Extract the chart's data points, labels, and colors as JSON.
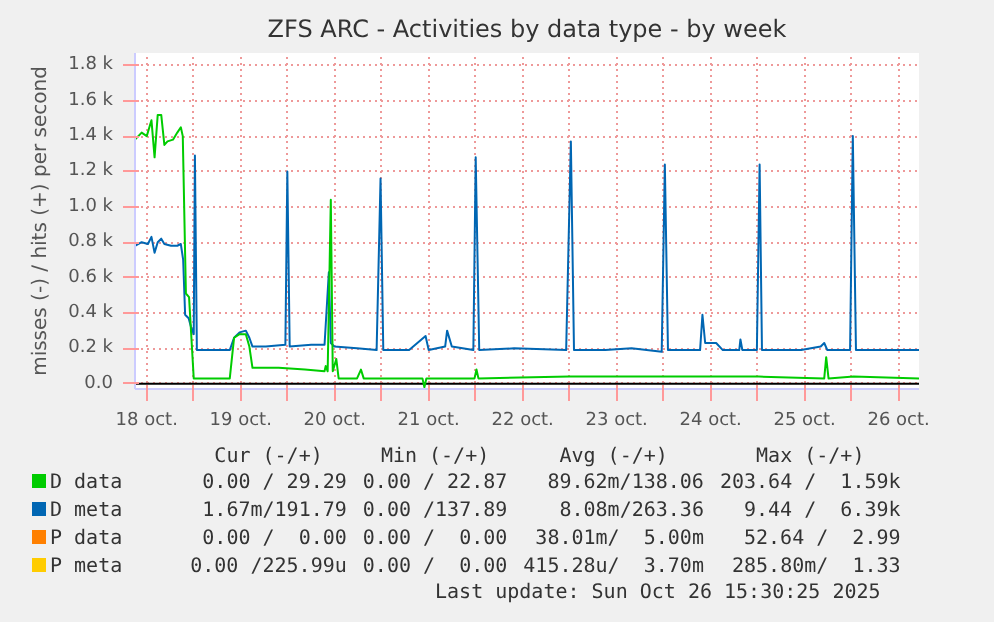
{
  "chart_data": {
    "type": "line",
    "title": "ZFS ARC - Activities by data type - by week",
    "ylabel": "misses (-) / hits (+) per second",
    "xlim": [
      "2025-10-18T09:00",
      "2025-10-26T17:12"
    ],
    "xticks": [
      {
        "value": "2025-10-18T12:00",
        "label": "18 oct."
      },
      {
        "value": "2025-10-19T00:00",
        "label": null
      },
      {
        "value": "2025-10-19T12:00",
        "label": "19 oct."
      },
      {
        "value": "2025-10-20T00:00",
        "label": null
      },
      {
        "value": "2025-10-20T12:00",
        "label": "20 oct."
      },
      {
        "value": "2025-10-21T00:00",
        "label": null
      },
      {
        "value": "2025-10-21T12:00",
        "label": "21 oct."
      },
      {
        "value": "2025-10-22T00:00",
        "label": null
      },
      {
        "value": "2025-10-22T12:00",
        "label": "22 oct."
      },
      {
        "value": "2025-10-23T00:00",
        "label": null
      },
      {
        "value": "2025-10-23T12:00",
        "label": "23 oct."
      },
      {
        "value": "2025-10-24T00:00",
        "label": null
      },
      {
        "value": "2025-10-24T12:00",
        "label": "24 oct."
      },
      {
        "value": "2025-10-25T00:00",
        "label": null
      },
      {
        "value": "2025-10-25T12:00",
        "label": "25 oct."
      },
      {
        "value": "2025-10-26T00:00",
        "label": null
      },
      {
        "value": "2025-10-26T12:00",
        "label": "26 oct."
      }
    ],
    "ylim": [
      -30,
      1870
    ],
    "yticks": [
      {
        "value": 0,
        "label": "0.0"
      },
      {
        "value": 200,
        "label": "0.2 k"
      },
      {
        "value": 400,
        "label": "0.4 k"
      },
      {
        "value": 600,
        "label": "0.6 k"
      },
      {
        "value": 800,
        "label": "0.8 k"
      },
      {
        "value": 1000,
        "label": "1.0 k"
      },
      {
        "value": 1200,
        "label": "1.2 k"
      },
      {
        "value": 1400,
        "label": "1.4 k"
      },
      {
        "value": 1600,
        "label": "1.6 k"
      },
      {
        "value": 1800,
        "label": "1.8 k"
      }
    ],
    "grid": true,
    "legend": "bottom",
    "series": [
      {
        "name": "D data",
        "color": "#00cc00",
        "x": [
          "2025-10-18T09:00",
          "2025-10-18T10:42",
          "2025-10-18T12:00",
          "2025-10-18T13:12",
          "2025-10-18T14:00",
          "2025-10-18T14:48",
          "2025-10-18T15:42",
          "2025-10-18T16:30",
          "2025-10-18T17:18",
          "2025-10-18T18:42",
          "2025-10-18T19:48",
          "2025-10-18T20:42",
          "2025-10-18T21:12",
          "2025-10-18T22:00",
          "2025-10-18T22:48",
          "2025-10-19T00:00",
          "2025-10-19T01:42",
          "2025-10-19T09:12",
          "2025-10-19T10:18",
          "2025-10-19T11:42",
          "2025-10-19T13:18",
          "2025-10-19T14:12",
          "2025-10-19T15:00",
          "2025-10-19T21:42",
          "2025-10-20T04:24",
          "2025-10-20T09:24",
          "2025-10-20T09:42",
          "2025-10-20T10:12",
          "2025-10-20T11:00",
          "2025-10-20T11:30",
          "2025-10-20T12:24",
          "2025-10-20T13:00",
          "2025-10-20T17:42",
          "2025-10-20T18:42",
          "2025-10-20T19:24",
          "2025-10-21T03:42",
          "2025-10-21T10:24",
          "2025-10-21T10:54",
          "2025-10-21T11:24",
          "2025-10-21T20:24",
          "2025-10-21T23:42",
          "2025-10-22T00:12",
          "2025-10-22T00:42",
          "2025-10-22T23:54",
          "2025-10-23T15:48",
          "2025-10-24T00:06",
          "2025-10-24T19:18",
          "2025-10-25T00:18",
          "2025-10-25T17:00",
          "2025-10-25T17:30",
          "2025-10-25T18:06",
          "2025-10-26T00:30",
          "2025-10-26T17:12"
        ],
        "values": [
          1380,
          1420,
          1400,
          1490,
          1280,
          1520,
          1520,
          1350,
          1370,
          1380,
          1420,
          1450,
          1400,
          510,
          490,
          30,
          30,
          30,
          260,
          280,
          280,
          210,
          90,
          90,
          80,
          70,
          100,
          70,
          1040,
          70,
          140,
          30,
          30,
          80,
          30,
          30,
          30,
          -20,
          30,
          30,
          30,
          80,
          30,
          40,
          40,
          40,
          40,
          40,
          30,
          150,
          30,
          40,
          30
        ]
      },
      {
        "name": "D meta",
        "color": "#0066b3",
        "x": [
          "2025-10-18T09:00",
          "2025-10-18T10:42",
          "2025-10-18T12:18",
          "2025-10-18T13:12",
          "2025-10-18T14:00",
          "2025-10-18T14:48",
          "2025-10-18T15:42",
          "2025-10-18T16:30",
          "2025-10-18T18:12",
          "2025-10-18T19:48",
          "2025-10-18T20:42",
          "2025-10-18T21:18",
          "2025-10-18T21:48",
          "2025-10-18T22:42",
          "2025-10-18T23:18",
          "2025-10-19T00:00",
          "2025-10-19T00:18",
          "2025-10-19T00:48",
          "2025-10-19T01:42",
          "2025-10-19T05:00",
          "2025-10-19T09:12",
          "2025-10-19T10:18",
          "2025-10-19T11:42",
          "2025-10-19T13:18",
          "2025-10-19T14:12",
          "2025-10-19T15:00",
          "2025-10-19T18:24",
          "2025-10-19T23:24",
          "2025-10-19T23:54",
          "2025-10-20T00:30",
          "2025-10-20T06:00",
          "2025-10-20T09:24",
          "2025-10-20T10:30",
          "2025-10-20T11:00",
          "2025-10-20T11:54",
          "2025-10-20T17:42",
          "2025-10-20T22:42",
          "2025-10-20T23:42",
          "2025-10-21T00:24",
          "2025-10-21T07:00",
          "2025-10-21T11:12",
          "2025-10-21T12:00",
          "2025-10-21T16:12",
          "2025-10-21T16:42",
          "2025-10-21T17:54",
          "2025-10-21T23:24",
          "2025-10-22T00:00",
          "2025-10-22T00:54",
          "2025-10-22T09:48",
          "2025-10-22T23:06",
          "2025-10-23T00:18",
          "2025-10-23T01:06",
          "2025-10-23T09:06",
          "2025-10-23T15:48",
          "2025-10-23T23:30",
          "2025-10-24T00:18",
          "2025-10-24T01:06",
          "2025-10-24T05:06",
          "2025-10-24T09:18",
          "2025-10-24T09:54",
          "2025-10-24T10:36",
          "2025-10-24T13:24",
          "2025-10-24T15:06",
          "2025-10-24T19:18",
          "2025-10-24T19:36",
          "2025-10-24T20:06",
          "2025-10-24T23:48",
          "2025-10-25T00:30",
          "2025-10-25T01:06",
          "2025-10-25T11:06",
          "2025-10-25T16:06",
          "2025-10-25T17:00",
          "2025-10-25T17:48",
          "2025-10-25T23:36",
          "2025-10-26T00:18",
          "2025-10-26T01:06",
          "2025-10-26T08:48",
          "2025-10-26T12:06",
          "2025-10-26T17:12"
        ],
        "values": [
          780,
          800,
          790,
          830,
          740,
          800,
          820,
          790,
          780,
          780,
          790,
          700,
          390,
          370,
          320,
          280,
          1290,
          190,
          190,
          190,
          190,
          260,
          290,
          300,
          260,
          210,
          210,
          220,
          1200,
          210,
          220,
          220,
          630,
          230,
          210,
          200,
          190,
          1160,
          190,
          190,
          270,
          190,
          210,
          300,
          210,
          190,
          1280,
          190,
          200,
          190,
          1370,
          190,
          190,
          200,
          180,
          1240,
          190,
          190,
          190,
          390,
          230,
          230,
          190,
          190,
          250,
          190,
          190,
          1240,
          190,
          190,
          210,
          230,
          190,
          190,
          1400,
          190,
          190,
          190,
          190
        ]
      },
      {
        "name": "P data",
        "color": "#ff8000"
      },
      {
        "name": "P meta",
        "color": "#ffcc00"
      }
    ],
    "annotations": [
      "Cur (-/+)",
      "Min (-/+)",
      "Avg (-/+)",
      "Max (-/+)",
      "0.00 / 29.29",
      "0.00 / 22.87",
      "89.62m/138.06",
      "203.64 /  1.59k",
      "1.67m/191.79",
      "0.00 /137.89",
      "8.08m/263.36",
      "9.44 /  6.39k",
      "0.00 /  0.00",
      "0.00 /  0.00",
      "38.01m/  5.00m",
      "52.64 /  2.99",
      "0.00 /225.99u",
      "0.00 /  0.00",
      "415.28u/  3.70m",
      "285.80m/  1.33",
      "Last update: Sun Oct 26 15:30:25 2025"
    ]
  }
}
